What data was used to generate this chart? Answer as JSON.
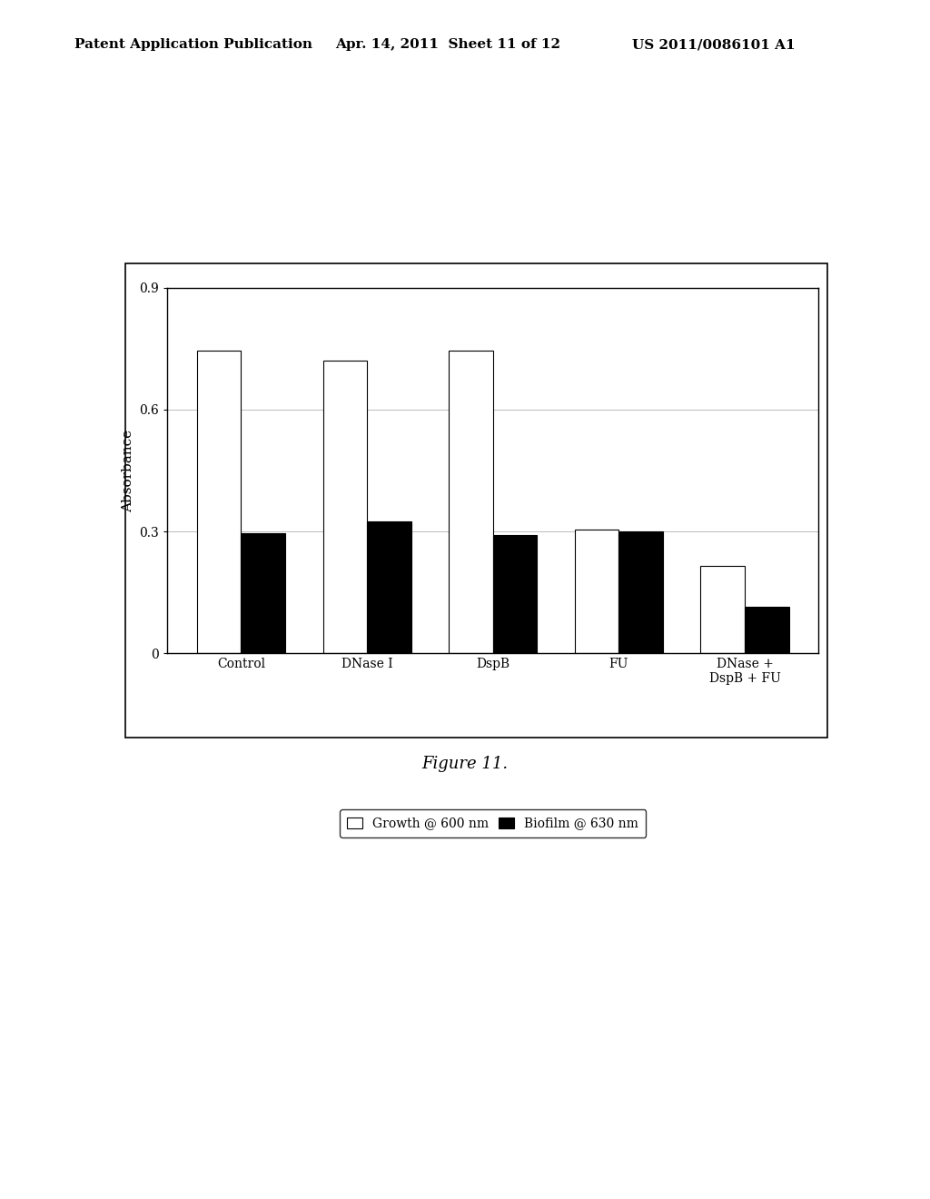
{
  "categories": [
    "Control",
    "DNase I",
    "DspB",
    "FU",
    "DNase +\nDspB + FU"
  ],
  "growth_values": [
    0.745,
    0.72,
    0.745,
    0.305,
    0.215
  ],
  "biofilm_values": [
    0.295,
    0.325,
    0.292,
    0.3,
    0.115
  ],
  "ylabel": "Absorbance",
  "ylim": [
    0,
    0.9
  ],
  "yticks": [
    0,
    0.3,
    0.6,
    0.9
  ],
  "figure_caption": "Figure 11.",
  "header_left": "Patent Application Publication",
  "header_mid": "Apr. 14, 2011  Sheet 11 of 12",
  "header_right": "US 2011/0086101 A1",
  "legend_labels": [
    "Growth @ 600 nm",
    "Biofilm @ 630 nm"
  ],
  "bar_width": 0.35,
  "growth_color": "white",
  "growth_edgecolor": "black",
  "biofilm_color": "black",
  "biofilm_edgecolor": "black",
  "background_color": "white",
  "grid_color": "#bbbbbb",
  "header_fontsize": 11,
  "caption_fontsize": 13,
  "axis_label_fontsize": 11,
  "tick_fontsize": 10,
  "legend_fontsize": 10
}
